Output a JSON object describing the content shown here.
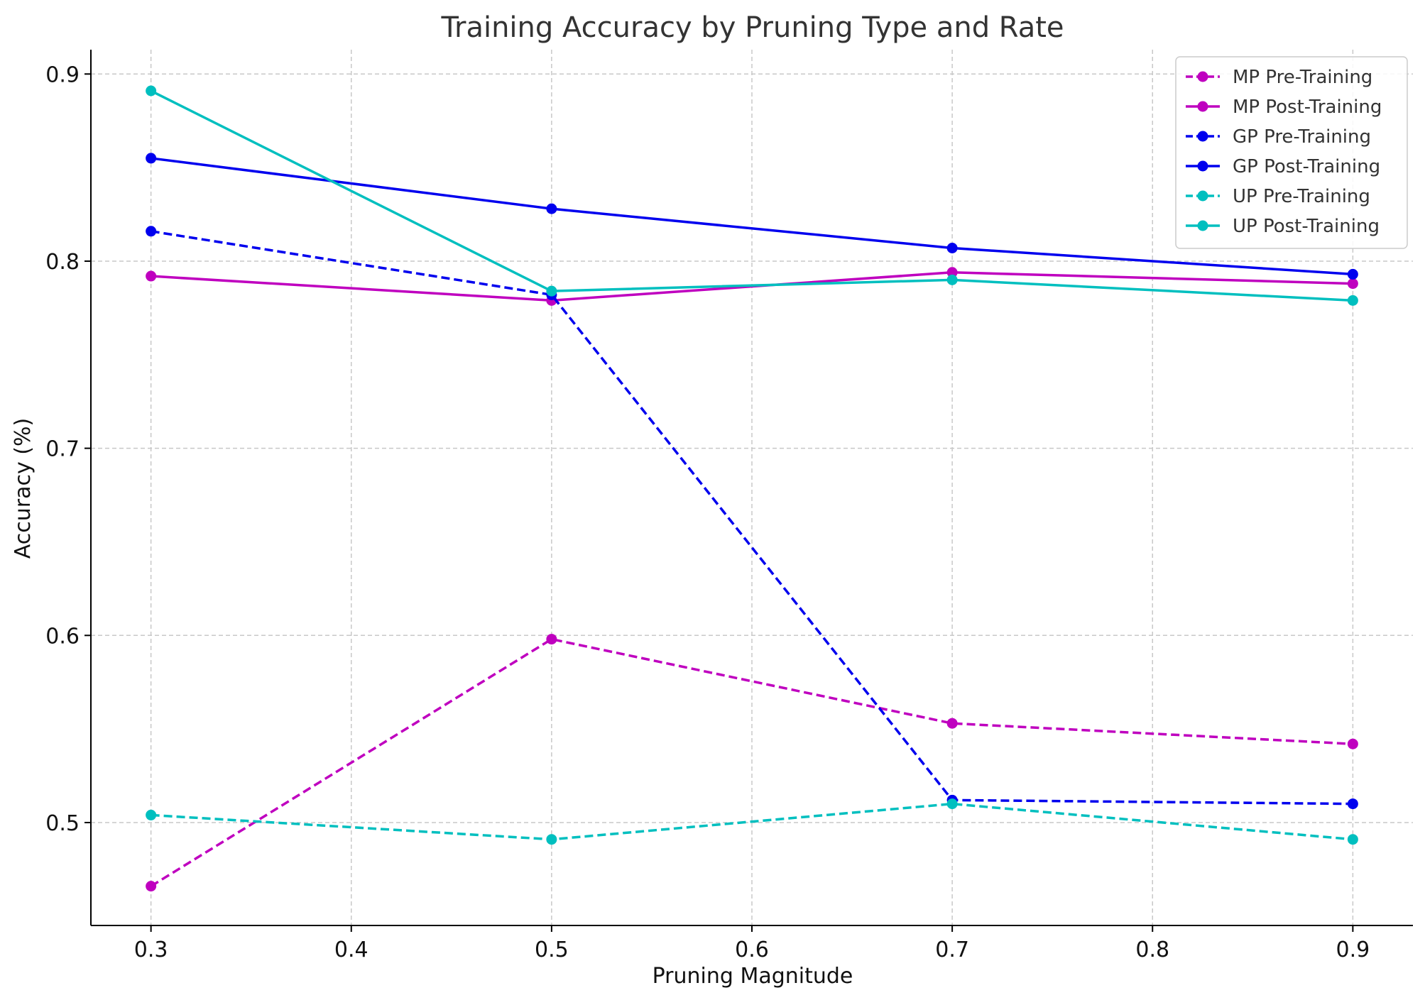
{
  "chart_data": {
    "type": "line",
    "title": "Training Accuracy by Pruning Type and Rate",
    "xlabel": "Pruning Magnitude",
    "ylabel": "Accuracy (%)",
    "xlim": [
      0.27,
      0.93
    ],
    "ylim": [
      0.445,
      0.913
    ],
    "xticks": [
      0.3,
      0.4,
      0.5,
      0.6,
      0.7,
      0.8,
      0.9
    ],
    "xtick_labels": [
      "0.3",
      "0.4",
      "0.5",
      "0.6",
      "0.7",
      "0.8",
      "0.9"
    ],
    "yticks": [
      0.5,
      0.6,
      0.7,
      0.8,
      0.9
    ],
    "ytick_labels": [
      "0.5",
      "0.6",
      "0.7",
      "0.8",
      "0.9"
    ],
    "grid": true,
    "legend_position": "top-right",
    "x": [
      0.3,
      0.5,
      0.7,
      0.9
    ],
    "series": [
      {
        "name": "MP Pre-Training",
        "color": "#bf00bf",
        "style": "dashed",
        "values": [
          0.466,
          0.598,
          0.553,
          0.542
        ]
      },
      {
        "name": "MP Post-Training",
        "color": "#bf00bf",
        "style": "solid",
        "values": [
          0.792,
          0.779,
          0.794,
          0.788
        ]
      },
      {
        "name": "GP Pre-Training",
        "color": "#0000ee",
        "style": "dashed",
        "values": [
          0.816,
          0.782,
          0.512,
          0.51
        ]
      },
      {
        "name": "GP Post-Training",
        "color": "#0000ee",
        "style": "solid",
        "values": [
          0.855,
          0.828,
          0.807,
          0.793
        ]
      },
      {
        "name": "UP Pre-Training",
        "color": "#00bfbf",
        "style": "dashed",
        "values": [
          0.504,
          0.491,
          0.51,
          0.491
        ]
      },
      {
        "name": "UP Post-Training",
        "color": "#00bfbf",
        "style": "solid",
        "values": [
          0.891,
          0.784,
          0.79,
          0.779
        ]
      }
    ]
  }
}
